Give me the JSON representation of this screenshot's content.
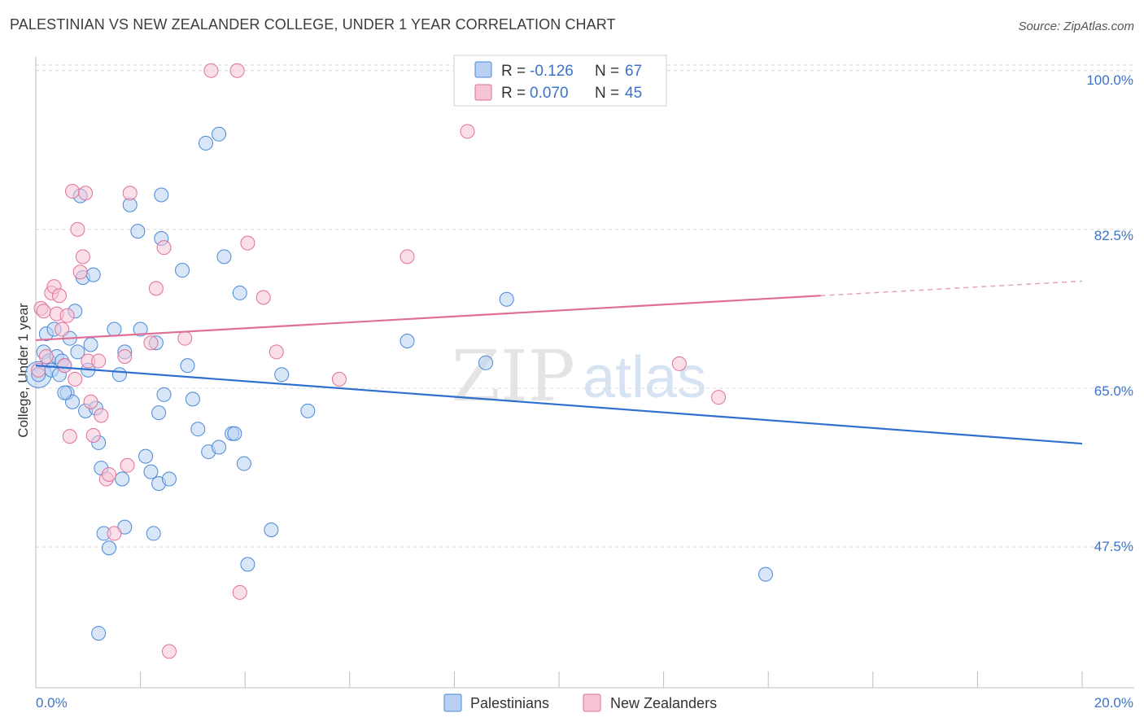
{
  "header": {
    "title": "PALESTINIAN VS NEW ZEALANDER COLLEGE, UNDER 1 YEAR CORRELATION CHART",
    "source": "Source: ZipAtlas.com"
  },
  "colors": {
    "blue": "#4a88d8",
    "blue_fill": "#b8d1f2",
    "pink": "#e07099",
    "pink_fill": "#f6c4d6",
    "axis_text": "#3b73c8",
    "grid": "#d8d8d8"
  },
  "legend": {
    "r_label": "R = ",
    "n_label": "N = ",
    "blue_r": "-0.126",
    "blue_n": "67",
    "pink_r": "0.070",
    "pink_n": "45"
  },
  "watermark": {
    "zip": "ZIP",
    "atlas": "atlas"
  },
  "chart_data": {
    "type": "scatter",
    "title": "PALESTINIAN VS NEW ZEALANDER COLLEGE, UNDER 1 YEAR CORRELATION CHART",
    "xlabel": "",
    "ylabel": "College, Under 1 year",
    "xlim": [
      0.0,
      20.0
    ],
    "ylim": [
      32.0,
      101.5
    ],
    "x_tick_labels": [
      "0.0%",
      "20.0%"
    ],
    "y_ticks": [
      47.5,
      65.0,
      82.5,
      100.0
    ],
    "y_tick_labels": [
      "47.5%",
      "65.0%",
      "82.5%",
      "100.0%"
    ],
    "series": [
      {
        "name": "Palestinians",
        "color": "#4a88d8",
        "r": -0.126,
        "n": 67,
        "trend": {
          "x0": 0.0,
          "y0": 67.5,
          "x1": 20.0,
          "y1": 58.9
        },
        "points": [
          [
            0.05,
            66.5
          ],
          [
            0.15,
            69.0
          ],
          [
            0.2,
            71.0
          ],
          [
            0.25,
            68.0
          ],
          [
            0.3,
            67.0
          ],
          [
            0.35,
            71.5
          ],
          [
            0.4,
            68.5
          ],
          [
            0.45,
            66.5
          ],
          [
            0.5,
            68.0
          ],
          [
            0.55,
            67.5
          ],
          [
            0.6,
            64.5
          ],
          [
            0.65,
            70.5
          ],
          [
            0.7,
            63.5
          ],
          [
            0.75,
            73.5
          ],
          [
            0.8,
            69.0
          ],
          [
            0.9,
            77.2
          ],
          [
            0.95,
            62.5
          ],
          [
            1.0,
            67.0
          ],
          [
            1.05,
            69.8
          ],
          [
            1.1,
            77.5
          ],
          [
            1.15,
            62.8
          ],
          [
            1.2,
            59.0
          ],
          [
            1.25,
            56.2
          ],
          [
            1.3,
            49.0
          ],
          [
            1.4,
            47.4
          ],
          [
            1.5,
            71.5
          ],
          [
            1.6,
            66.5
          ],
          [
            1.65,
            55.0
          ],
          [
            1.7,
            49.7
          ],
          [
            1.8,
            85.2
          ],
          [
            1.95,
            82.3
          ],
          [
            2.0,
            71.5
          ],
          [
            2.1,
            57.5
          ],
          [
            2.2,
            55.8
          ],
          [
            2.25,
            49.0
          ],
          [
            2.3,
            70.0
          ],
          [
            2.35,
            54.5
          ],
          [
            2.4,
            86.3
          ],
          [
            2.4,
            81.5
          ],
          [
            2.55,
            55.0
          ],
          [
            2.8,
            78.0
          ],
          [
            2.9,
            67.5
          ],
          [
            3.0,
            63.8
          ],
          [
            3.1,
            60.5
          ],
          [
            3.25,
            92.0
          ],
          [
            3.3,
            58.0
          ],
          [
            3.5,
            58.5
          ],
          [
            3.5,
            93.0
          ],
          [
            3.6,
            79.5
          ],
          [
            3.75,
            60.0
          ],
          [
            3.8,
            60.0
          ],
          [
            3.9,
            75.5
          ],
          [
            3.98,
            56.7
          ],
          [
            4.05,
            45.6
          ],
          [
            4.5,
            49.4
          ],
          [
            4.7,
            66.5
          ],
          [
            5.2,
            62.5
          ],
          [
            7.1,
            70.2
          ],
          [
            8.6,
            67.8
          ],
          [
            9.0,
            74.8
          ],
          [
            13.95,
            44.5
          ],
          [
            1.2,
            38.0
          ],
          [
            0.85,
            86.2
          ],
          [
            2.35,
            62.3
          ],
          [
            0.55,
            64.5
          ],
          [
            2.45,
            64.3
          ],
          [
            1.7,
            69.0
          ]
        ]
      },
      {
        "name": "New Zealanders",
        "color": "#e07099",
        "r": 0.07,
        "n": 45,
        "trend": {
          "x0": 0.0,
          "y0": 70.3,
          "x1": 15.0,
          "y1": 75.2,
          "dash_to_x": 20.0,
          "dash_to_y": 76.8
        },
        "points": [
          [
            0.05,
            67.0
          ],
          [
            0.1,
            73.8
          ],
          [
            0.15,
            73.5
          ],
          [
            0.2,
            68.5
          ],
          [
            0.3,
            75.5
          ],
          [
            0.35,
            76.2
          ],
          [
            0.4,
            73.2
          ],
          [
            0.45,
            75.2
          ],
          [
            0.5,
            71.5
          ],
          [
            0.55,
            67.5
          ],
          [
            0.6,
            73.0
          ],
          [
            0.65,
            59.7
          ],
          [
            0.7,
            86.7
          ],
          [
            0.75,
            66.0
          ],
          [
            0.8,
            82.5
          ],
          [
            0.85,
            77.8
          ],
          [
            0.9,
            79.5
          ],
          [
            0.95,
            86.5
          ],
          [
            1.0,
            68.0
          ],
          [
            1.05,
            63.5
          ],
          [
            1.1,
            59.8
          ],
          [
            1.2,
            68.0
          ],
          [
            1.25,
            62.0
          ],
          [
            1.35,
            55.0
          ],
          [
            1.4,
            55.5
          ],
          [
            1.5,
            49.0
          ],
          [
            1.7,
            68.5
          ],
          [
            1.75,
            56.5
          ],
          [
            1.8,
            86.5
          ],
          [
            2.2,
            70.0
          ],
          [
            2.3,
            76.0
          ],
          [
            2.45,
            80.5
          ],
          [
            2.55,
            36.0
          ],
          [
            3.35,
            100.0
          ],
          [
            3.85,
            100.0
          ],
          [
            3.9,
            42.5
          ],
          [
            4.05,
            81.0
          ],
          [
            4.35,
            75.0
          ],
          [
            4.6,
            69.0
          ],
          [
            5.8,
            66.0
          ],
          [
            7.1,
            79.5
          ],
          [
            8.25,
            93.3
          ],
          [
            12.3,
            67.7
          ],
          [
            13.05,
            64.0
          ],
          [
            2.85,
            70.5
          ]
        ]
      }
    ]
  },
  "bottom_legend": {
    "items": [
      "Palestinians",
      "New Zealanders"
    ]
  }
}
